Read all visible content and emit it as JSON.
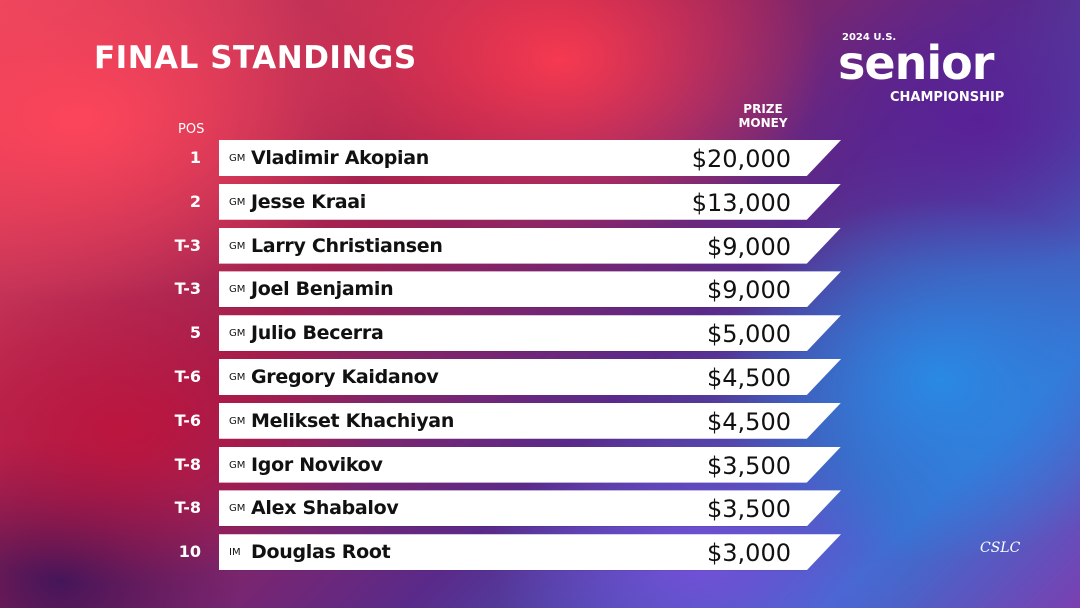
{
  "header": {
    "title": "FINAL STANDINGS"
  },
  "logo": {
    "year": "2024 U.S.",
    "word": "senior",
    "subtitle": "CHAMPIONSHIP"
  },
  "table": {
    "columns": {
      "pos": "POS",
      "prize": [
        "PRIZE",
        "MONEY"
      ]
    },
    "rows": [
      [
        "1",
        "GM",
        "Vladimir Akopian",
        "$20,000"
      ],
      [
        "2",
        "GM",
        "Jesse Kraai",
        "$13,000"
      ],
      [
        "T-3",
        "GM",
        "Larry Christiansen",
        "$9,000"
      ],
      [
        "T-3",
        "GM",
        "Joel Benjamin",
        "$9,000"
      ],
      [
        "5",
        "GM",
        "Julio Becerra",
        "$5,000"
      ],
      [
        "T-6",
        "GM",
        "Gregory Kaidanov",
        "$4,500"
      ],
      [
        "T-6",
        "GM",
        "Melikset Khachiyan",
        "$4,500"
      ],
      [
        "T-8",
        "GM",
        "Igor Novikov",
        "$3,500"
      ],
      [
        "T-8",
        "GM",
        "Alex Shabalov",
        "$3,500"
      ],
      [
        "10",
        "IM",
        "Douglas Root",
        "$3,000"
      ]
    ]
  },
  "footer": {
    "club": "CSLC"
  }
}
